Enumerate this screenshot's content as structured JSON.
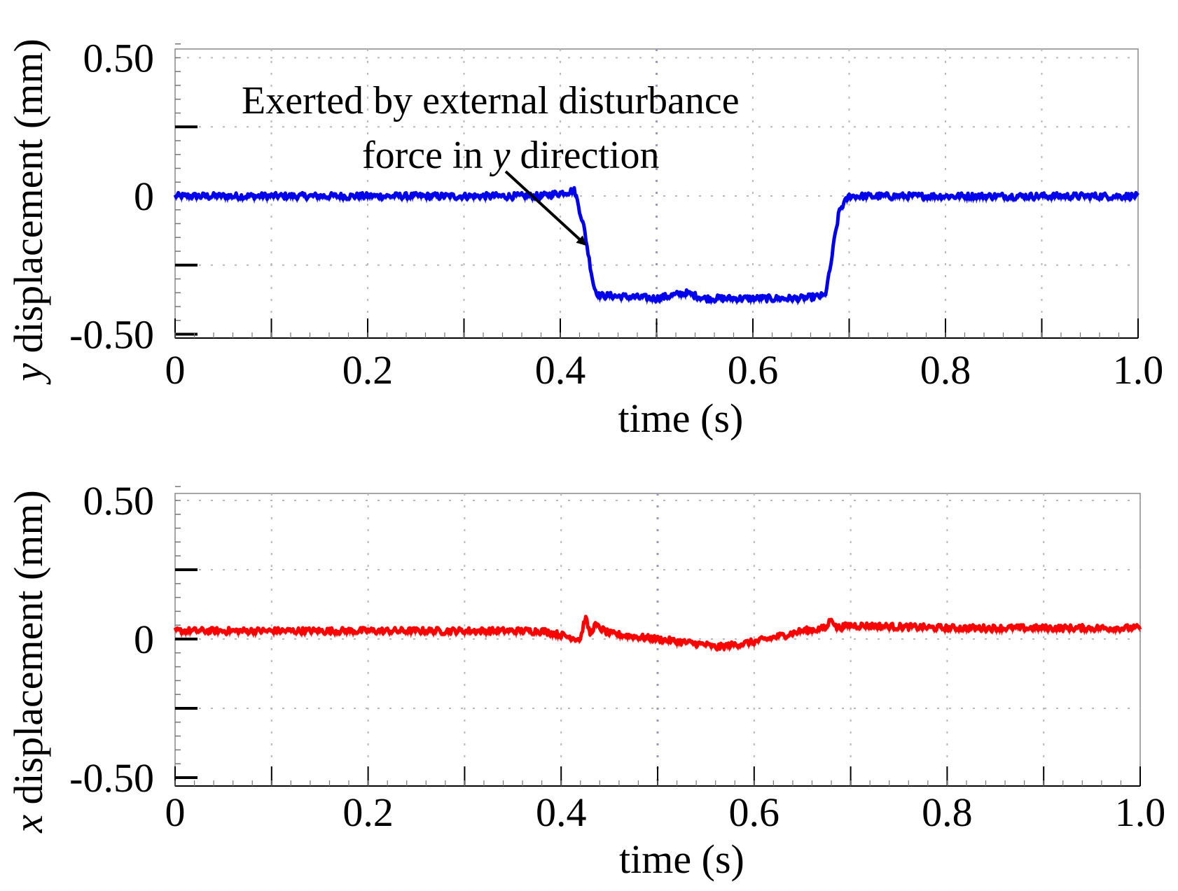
{
  "chart_data": [
    {
      "type": "line",
      "panel": "top",
      "series": [
        {
          "name": "y displacement",
          "color": "#0000ee",
          "x": [
            0,
            0.1,
            0.2,
            0.3,
            0.38,
            0.415,
            0.42,
            0.425,
            0.43,
            0.435,
            0.44,
            0.45,
            0.5,
            0.53,
            0.55,
            0.6,
            0.65,
            0.675,
            0.68,
            0.685,
            0.69,
            0.7,
            0.8,
            0.9,
            1.0
          ],
          "values": [
            0.0,
            0.0,
            0.0,
            0.0,
            0.0,
            0.02,
            -0.05,
            -0.12,
            -0.23,
            -0.33,
            -0.36,
            -0.36,
            -0.37,
            -0.35,
            -0.37,
            -0.37,
            -0.37,
            -0.36,
            -0.27,
            -0.15,
            -0.05,
            0.0,
            0.0,
            0.0,
            0.0
          ],
          "noise": 0.012
        }
      ],
      "ylabel_var": "y",
      "ylabel_rest": " displacement (mm)",
      "xlabel": "time (s)",
      "xlim": [
        0,
        1.0
      ],
      "ylim": [
        -0.5,
        0.55
      ],
      "xticks": [
        "0",
        "0.2",
        "0.4",
        "0.6",
        "0.8",
        "1.0"
      ],
      "yticks": [
        "0.50",
        "0",
        "-0.50"
      ],
      "grid": true,
      "annotation": {
        "line1": "Exerted by external disturbance",
        "line2_pre": "force in ",
        "line2_var": "y",
        "line2_post": " direction",
        "target_x": 0.43,
        "target_y": -0.2
      }
    },
    {
      "type": "line",
      "panel": "bottom",
      "series": [
        {
          "name": "x displacement",
          "color": "#ff0000",
          "x": [
            0,
            0.1,
            0.2,
            0.3,
            0.38,
            0.42,
            0.425,
            0.43,
            0.435,
            0.45,
            0.5,
            0.55,
            0.56,
            0.6,
            0.65,
            0.675,
            0.68,
            0.685,
            0.7,
            0.8,
            0.9,
            1.0
          ],
          "values": [
            0.03,
            0.03,
            0.03,
            0.03,
            0.03,
            0.0,
            0.08,
            0.02,
            0.05,
            0.02,
            0.0,
            -0.02,
            -0.03,
            -0.01,
            0.03,
            0.04,
            0.08,
            0.04,
            0.05,
            0.04,
            0.04,
            0.04
          ],
          "noise": 0.012
        }
      ],
      "ylabel_var": "x",
      "ylabel_rest": " displacement (mm)",
      "xlabel": "time (s)",
      "xlim": [
        0,
        1.0
      ],
      "ylim": [
        -0.5,
        0.55
      ],
      "xticks": [
        "0",
        "0.2",
        "0.4",
        "0.6",
        "0.8",
        "1.0"
      ],
      "yticks": [
        "0.50",
        "0",
        "-0.50"
      ],
      "grid": true
    }
  ]
}
